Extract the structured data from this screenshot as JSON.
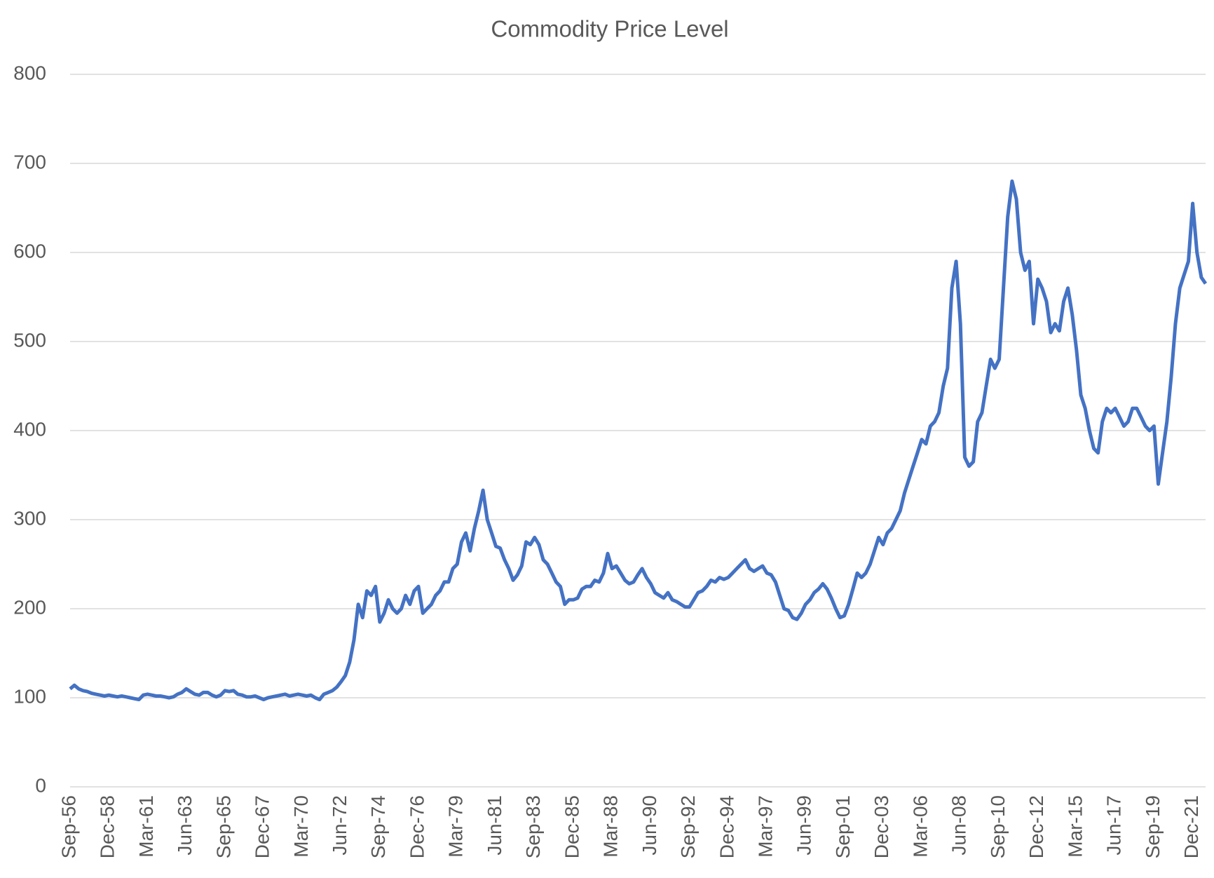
{
  "chart_data": {
    "type": "line",
    "title": "Commodity Price Level",
    "categories": [
      "Sep-56",
      null,
      null,
      null,
      null,
      null,
      null,
      null,
      null,
      "Dec-58",
      null,
      null,
      null,
      null,
      null,
      null,
      null,
      null,
      "Mar-61",
      null,
      null,
      null,
      null,
      null,
      null,
      null,
      null,
      "Jun-63",
      null,
      null,
      null,
      null,
      null,
      null,
      null,
      null,
      "Sep-65",
      null,
      null,
      null,
      null,
      null,
      null,
      null,
      null,
      "Dec-67",
      null,
      null,
      null,
      null,
      null,
      null,
      null,
      null,
      "Mar-70",
      null,
      null,
      null,
      null,
      null,
      null,
      null,
      null,
      "Jun-72",
      null,
      null,
      null,
      null,
      null,
      null,
      null,
      null,
      "Sep-74",
      null,
      null,
      null,
      null,
      null,
      null,
      null,
      null,
      "Dec-76",
      null,
      null,
      null,
      null,
      null,
      null,
      null,
      null,
      "Mar-79",
      null,
      null,
      null,
      null,
      null,
      null,
      null,
      null,
      "Jun-81",
      null,
      null,
      null,
      null,
      null,
      null,
      null,
      null,
      "Sep-83",
      null,
      null,
      null,
      null,
      null,
      null,
      null,
      null,
      "Dec-85",
      null,
      null,
      null,
      null,
      null,
      null,
      null,
      null,
      "Mar-88",
      null,
      null,
      null,
      null,
      null,
      null,
      null,
      null,
      "Jun-90",
      null,
      null,
      null,
      null,
      null,
      null,
      null,
      null,
      "Sep-92",
      null,
      null,
      null,
      null,
      null,
      null,
      null,
      null,
      "Dec-94",
      null,
      null,
      null,
      null,
      null,
      null,
      null,
      null,
      "Mar-97",
      null,
      null,
      null,
      null,
      null,
      null,
      null,
      null,
      "Jun-99",
      null,
      null,
      null,
      null,
      null,
      null,
      null,
      null,
      "Sep-01",
      null,
      null,
      null,
      null,
      null,
      null,
      null,
      null,
      "Dec-03",
      null,
      null,
      null,
      null,
      null,
      null,
      null,
      null,
      "Mar-06",
      null,
      null,
      null,
      null,
      null,
      null,
      null,
      null,
      "Jun-08",
      null,
      null,
      null,
      null,
      null,
      null,
      null,
      null,
      "Sep-10",
      null,
      null,
      null,
      null,
      null,
      null,
      null,
      null,
      "Dec-12",
      null,
      null,
      null,
      null,
      null,
      null,
      null,
      null,
      "Mar-15",
      null,
      null,
      null,
      null,
      null,
      null,
      null,
      null,
      "Jun-17",
      null,
      null,
      null,
      null,
      null,
      null,
      null,
      null,
      "Sep-19",
      null,
      null,
      null,
      null,
      null,
      null,
      null,
      null,
      "Dec-21",
      null,
      null,
      null
    ],
    "series": [
      {
        "color": "#4472c4",
        "values": [
          110,
          114,
          110,
          108,
          107,
          105,
          104,
          103,
          102,
          103,
          102,
          101,
          102,
          101,
          100,
          99,
          98,
          103,
          104,
          103,
          102,
          102,
          101,
          100,
          101,
          104,
          106,
          110,
          107,
          104,
          103,
          106,
          106,
          103,
          101,
          103,
          108,
          107,
          108,
          104,
          103,
          101,
          101,
          102,
          100,
          98,
          100,
          101,
          102,
          103,
          104,
          102,
          103,
          104,
          103,
          102,
          103,
          100,
          98,
          104,
          106,
          108,
          112,
          118,
          125,
          140,
          165,
          205,
          190,
          220,
          215,
          225,
          185,
          195,
          210,
          200,
          195,
          200,
          215,
          205,
          220,
          225,
          195,
          200,
          205,
          215,
          220,
          230,
          230,
          245,
          250,
          275,
          285,
          265,
          290,
          310,
          333,
          300,
          285,
          270,
          268,
          255,
          245,
          232,
          238,
          248,
          275,
          272,
          280,
          272,
          255,
          250,
          240,
          230,
          225,
          205,
          210,
          210,
          212,
          222,
          225,
          225,
          232,
          230,
          240,
          262,
          245,
          248,
          240,
          232,
          228,
          230,
          238,
          245,
          235,
          228,
          218,
          215,
          212,
          218,
          210,
          208,
          205,
          202,
          202,
          210,
          218,
          220,
          225,
          232,
          230,
          235,
          233,
          235,
          240,
          245,
          250,
          255,
          245,
          242,
          245,
          248,
          240,
          238,
          230,
          215,
          200,
          198,
          190,
          188,
          195,
          205,
          210,
          218,
          222,
          228,
          222,
          212,
          200,
          190,
          192,
          205,
          222,
          240,
          235,
          240,
          250,
          265,
          280,
          272,
          285,
          290,
          300,
          310,
          330,
          345,
          360,
          375,
          390,
          385,
          405,
          410,
          420,
          450,
          470,
          560,
          590,
          520,
          370,
          360,
          365,
          410,
          420,
          450,
          480,
          470,
          480,
          560,
          640,
          680,
          660,
          600,
          580,
          590,
          520,
          570,
          560,
          545,
          510,
          520,
          512,
          545,
          560,
          530,
          490,
          440,
          425,
          400,
          380,
          375,
          410,
          425,
          420,
          425,
          415,
          405,
          410,
          425,
          425,
          415,
          405,
          400,
          405,
          340,
          375,
          410,
          460,
          520,
          560,
          575,
          590,
          655,
          600,
          572,
          565
        ]
      }
    ],
    "ylim": [
      0,
      800
    ],
    "yticks": [
      0,
      100,
      200,
      300,
      400,
      500,
      600,
      700,
      800
    ],
    "grid": true
  }
}
